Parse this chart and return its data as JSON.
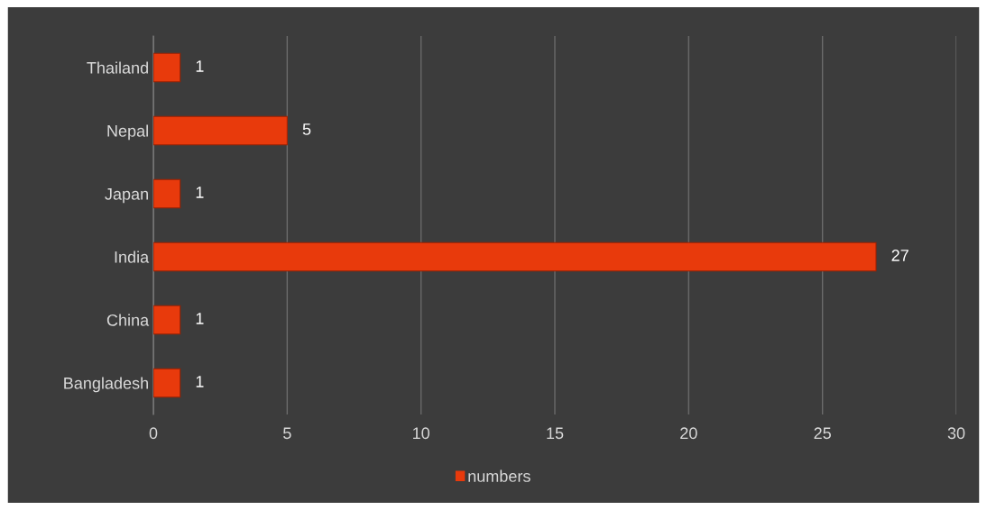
{
  "chart_data": {
    "type": "bar",
    "orientation": "horizontal",
    "categories": [
      "Thailand",
      "Nepal",
      "Japan",
      "India",
      "China",
      "Bangladesh"
    ],
    "series": [
      {
        "name": "numbers",
        "color": "#e83a0c",
        "values": [
          1,
          5,
          1,
          27,
          1,
          1
        ]
      }
    ],
    "xlim": [
      0,
      30
    ],
    "xticks": [
      0,
      5,
      10,
      15,
      20,
      25,
      30
    ],
    "grid": "x",
    "legend": "bottom",
    "data_labels": true
  }
}
